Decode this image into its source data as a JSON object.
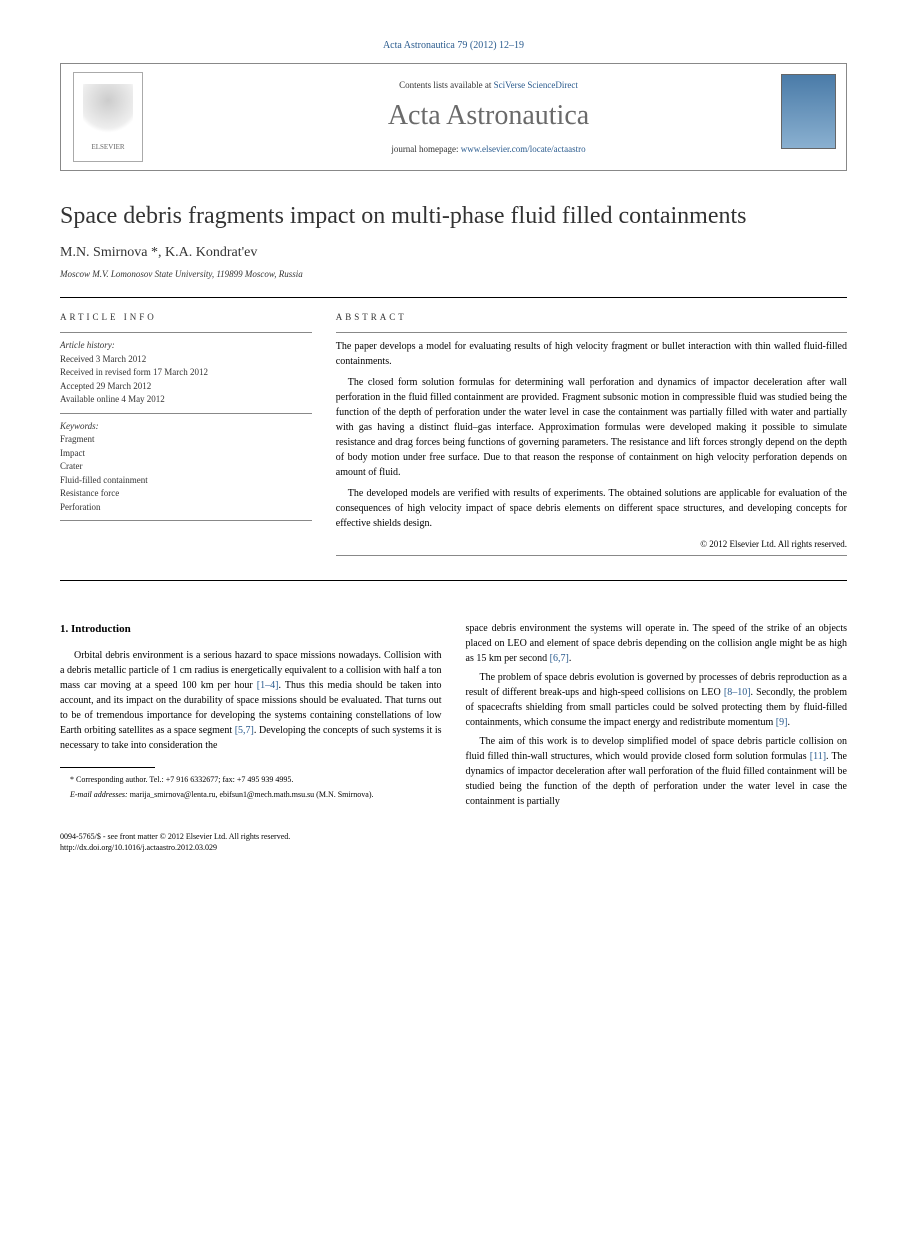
{
  "journal_header": "Acta Astronautica 79 (2012) 12–19",
  "masthead": {
    "contents_prefix": "Contents lists available at ",
    "contents_link": "SciVerse ScienceDirect",
    "journal_name": "Acta Astronautica",
    "homepage_prefix": "journal homepage: ",
    "homepage_link": "www.elsevier.com/locate/actaastro",
    "publisher": "ELSEVIER"
  },
  "title": "Space debris fragments impact on multi-phase fluid filled containments",
  "authors": "M.N. Smirnova *, K.A. Kondrat'ev",
  "affiliation": "Moscow M.V. Lomonosov State University, 119899 Moscow, Russia",
  "article_info": {
    "label": "ARTICLE INFO",
    "history_label": "Article history:",
    "received": "Received 3 March 2012",
    "revised": "Received in revised form 17 March 2012",
    "accepted": "Accepted 29 March 2012",
    "online": "Available online 4 May 2012",
    "keywords_label": "Keywords:",
    "keywords": [
      "Fragment",
      "Impact",
      "Crater",
      "Fluid-filled containment",
      "Resistance force",
      "Perforation"
    ]
  },
  "abstract": {
    "label": "ABSTRACT",
    "p1": "The paper develops a model for evaluating results of high velocity fragment or bullet interaction with thin walled fluid-filled containments.",
    "p2": "The closed form solution formulas for determining wall perforation and dynamics of impactor deceleration after wall perforation in the fluid filled containment are provided. Fragment subsonic motion in compressible fluid was studied being the function of the depth of perforation under the water level in case the containment was partially filled with water and partially with gas having a distinct fluid–gas interface. Approximation formulas were developed making it possible to simulate resistance and drag forces being functions of governing parameters. The resistance and lift forces strongly depend on the depth of body motion under free surface. Due to that reason the response of containment on high velocity perforation depends on amount of fluid.",
    "p3": "The developed models are verified with results of experiments. The obtained solutions are applicable for evaluation of the consequences of high velocity impact of space debris elements on different space structures, and developing concepts for effective shields design.",
    "copyright": "© 2012 Elsevier Ltd. All rights reserved."
  },
  "body": {
    "intro_heading": "1. Introduction",
    "col1_p1a": "Orbital debris environment is a serious hazard to space missions nowadays. Collision with a debris metallic particle of 1 cm radius is energetically equivalent to a collision with half a ton mass car moving at a speed 100 km per hour ",
    "col1_ref1": "[1–4]",
    "col1_p1b": ". Thus this media should be taken into account, and its impact on the durability of space missions should be evaluated. That turns out to be of tremendous importance for developing the systems containing constellations of low Earth orbiting satellites as a space segment ",
    "col1_ref2": "[5,7]",
    "col1_p1c": ". Developing the concepts of such systems it is necessary to take into consideration the",
    "col2_p1a": "space debris environment the systems will operate in. The speed of the strike of an objects placed on LEO and element of space debris depending on the collision angle might be as high as 15 km per second ",
    "col2_ref1": "[6,7]",
    "col2_p1b": ".",
    "col2_p2a": "The problem of space debris evolution is governed by processes of debris reproduction as a result of different break-ups and high-speed collisions on LEO ",
    "col2_ref2": "[8–10]",
    "col2_p2b": ". Secondly, the problem of spacecrafts shielding from small particles could be solved protecting them by fluid-filled containments, which consume the impact energy and redistribute momentum ",
    "col2_ref3": "[9]",
    "col2_p2c": ".",
    "col2_p3a": "The aim of this work is to develop simplified model of space debris particle collision on fluid filled thin-wall structures, which would provide closed form solution formulas ",
    "col2_ref4": "[11]",
    "col2_p3b": ". The dynamics of impactor deceleration after wall perforation of the fluid filled containment will be studied being the function of the depth of perforation under the water level in case the containment is partially"
  },
  "footnote": {
    "corr": "* Corresponding author. Tel.: +7 916 6332677; fax: +7 495 939 4995.",
    "email_label": "E-mail addresses:",
    "emails": " marija_smirnova@lenta.ru, ebifsun1@mech.math.msu.su (M.N. Smirnova)."
  },
  "footer": {
    "issn": "0094-5765/$ - see front matter © 2012 Elsevier Ltd. All rights reserved.",
    "doi": "http://dx.doi.org/10.1016/j.actaastro.2012.03.029"
  },
  "colors": {
    "link": "#2a5b8e",
    "text": "#000000",
    "gray_text": "#6a6a6a"
  }
}
